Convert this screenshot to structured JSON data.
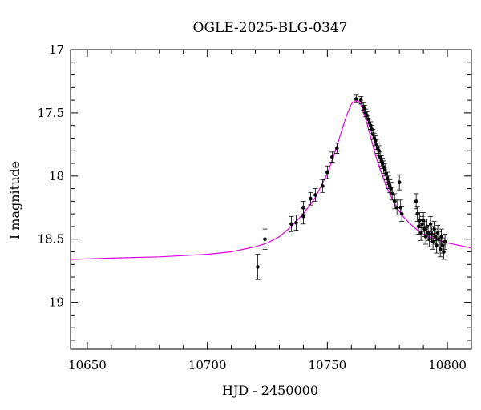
{
  "chart_data": {
    "type": "scatter",
    "title": "OGLE-2025-BLG-0347",
    "xlabel": "HJD - 2450000",
    "ylabel": "I magnitude",
    "xlim": [
      10643,
      10810
    ],
    "ylim": [
      19.37,
      17.0
    ],
    "y_inverted": true,
    "xticks": [
      10650,
      10700,
      10750,
      10800
    ],
    "yticks": [
      17,
      17.5,
      18,
      18.5,
      19
    ],
    "grid": false,
    "legend": "none",
    "colors": {
      "model": "#e000e0",
      "data": "#000000",
      "axes": "#000000"
    },
    "series": [
      {
        "kind": "points_with_errorbars",
        "x": [
          10721,
          10724,
          10735,
          10737,
          10740,
          10740,
          10743,
          10745,
          10748,
          10750,
          10752,
          10754,
          10762,
          10764,
          10765,
          10765.5,
          10766,
          10766.5,
          10767,
          10767.5,
          10768,
          10768.5,
          10769,
          10769.5,
          10770,
          10770.5,
          10771,
          10771.5,
          10772,
          10772.5,
          10773,
          10773.5,
          10774,
          10774.5,
          10775,
          10775.5,
          10776,
          10776.5,
          10777,
          10778,
          10779,
          10780,
          10780.5,
          10781,
          10787,
          10787.5,
          10788,
          10788.5,
          10789,
          10789.5,
          10790,
          10790.5,
          10791,
          10791.5,
          10792,
          10792.5,
          10793,
          10793.5,
          10794,
          10794.5,
          10795,
          10795.5,
          10796,
          10796.5,
          10797,
          10797.5,
          10798,
          10798.5,
          10799
        ],
        "y": [
          18.72,
          18.5,
          18.38,
          18.37,
          18.32,
          18.25,
          18.18,
          18.15,
          18.08,
          17.97,
          17.85,
          17.78,
          17.39,
          17.4,
          17.45,
          17.47,
          17.5,
          17.52,
          17.55,
          17.58,
          17.6,
          17.63,
          17.67,
          17.7,
          17.72,
          17.75,
          17.78,
          17.8,
          17.85,
          17.88,
          17.9,
          17.93,
          17.95,
          17.98,
          18.02,
          18.05,
          18.08,
          18.1,
          18.14,
          18.2,
          18.25,
          18.05,
          18.25,
          18.3,
          18.2,
          18.3,
          18.4,
          18.35,
          18.45,
          18.38,
          18.35,
          18.42,
          18.48,
          18.4,
          18.45,
          18.5,
          18.38,
          18.46,
          18.52,
          18.42,
          18.48,
          18.55,
          18.45,
          18.5,
          18.58,
          18.48,
          18.55,
          18.6,
          18.52
        ],
        "yerr": [
          0.1,
          0.08,
          0.06,
          0.06,
          0.06,
          0.05,
          0.05,
          0.05,
          0.05,
          0.05,
          0.04,
          0.04,
          0.03,
          0.03,
          0.03,
          0.03,
          0.03,
          0.03,
          0.03,
          0.03,
          0.03,
          0.03,
          0.04,
          0.04,
          0.04,
          0.04,
          0.04,
          0.04,
          0.04,
          0.04,
          0.04,
          0.05,
          0.05,
          0.05,
          0.05,
          0.05,
          0.05,
          0.05,
          0.05,
          0.06,
          0.06,
          0.06,
          0.06,
          0.06,
          0.06,
          0.06,
          0.06,
          0.06,
          0.06,
          0.06,
          0.06,
          0.06,
          0.06,
          0.06,
          0.06,
          0.06,
          0.06,
          0.06,
          0.06,
          0.06,
          0.06,
          0.06,
          0.06,
          0.06,
          0.06,
          0.06,
          0.06,
          0.06,
          0.06
        ]
      },
      {
        "kind": "model_curve",
        "x": [
          10643,
          10660,
          10680,
          10700,
          10710,
          10720,
          10725,
          10730,
          10735,
          10740,
          10745,
          10750,
          10753,
          10756,
          10758,
          10760,
          10761,
          10762,
          10763,
          10764,
          10766,
          10768,
          10770,
          10772,
          10775,
          10778,
          10781,
          10784,
          10787,
          10790,
          10795,
          10800,
          10805,
          10810
        ],
        "y": [
          18.66,
          18.65,
          18.64,
          18.62,
          18.6,
          18.56,
          18.53,
          18.48,
          18.4,
          18.3,
          18.17,
          17.98,
          17.82,
          17.64,
          17.52,
          17.43,
          17.41,
          17.4,
          17.41,
          17.44,
          17.55,
          17.69,
          17.83,
          17.95,
          18.1,
          18.22,
          18.31,
          18.37,
          18.42,
          18.46,
          18.5,
          18.53,
          18.55,
          18.57
        ]
      }
    ]
  }
}
